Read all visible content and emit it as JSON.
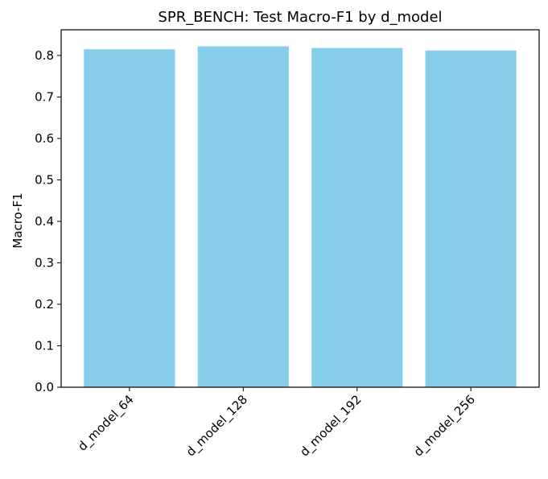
{
  "chart_data": {
    "type": "bar",
    "title": "SPR_BENCH: Test Macro-F1 by d_model",
    "xlabel": "",
    "ylabel": "Macro-F1",
    "categories": [
      "d_model_64",
      "d_model_128",
      "d_model_192",
      "d_model_256"
    ],
    "values": [
      0.815,
      0.822,
      0.818,
      0.812
    ],
    "ylim": [
      0,
      0.862
    ],
    "yticks": [
      "0.0",
      "0.1",
      "0.2",
      "0.3",
      "0.4",
      "0.5",
      "0.6",
      "0.7",
      "0.8"
    ],
    "bar_color": "#87ceeb",
    "grid": false,
    "legend": "none"
  }
}
